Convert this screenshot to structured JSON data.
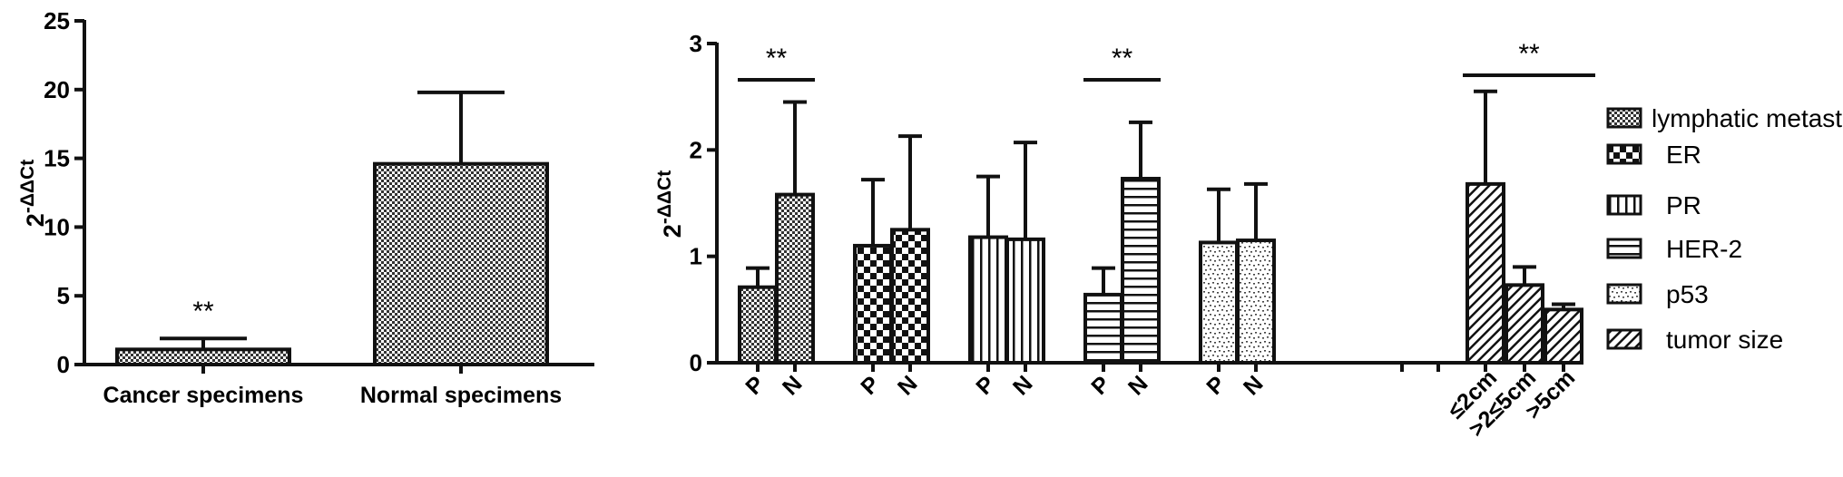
{
  "colors": {
    "ink": "#111111",
    "background": "#ffffff"
  },
  "chart_data": [
    {
      "type": "bar",
      "ylabel": "2-ΔΔCt",
      "ylim": [
        0,
        25
      ],
      "yticks": [
        0,
        5,
        10,
        15,
        20,
        25
      ],
      "categories": [
        "Cancer specimens",
        "Normal specimens"
      ],
      "values": [
        1.1,
        14.6
      ],
      "errors": [
        0.8,
        5.2
      ],
      "patterns": [
        "dots",
        "dots"
      ],
      "annotations": [
        {
          "text": "**",
          "category": "Cancer specimens"
        }
      ]
    },
    {
      "type": "bar",
      "ylabel": "2-ΔΔCt",
      "ylim": [
        0,
        3
      ],
      "yticks": [
        0,
        1,
        2,
        3
      ],
      "legend_position": "right",
      "series": [
        {
          "name": "lymphatic metastasis",
          "pattern": "dots",
          "categories": [
            "P",
            "N"
          ],
          "values": [
            0.71,
            1.58
          ],
          "errors": [
            0.18,
            0.87
          ],
          "significance": "**"
        },
        {
          "name": "ER",
          "pattern": "checker",
          "categories": [
            "P",
            "N"
          ],
          "values": [
            1.1,
            1.25
          ],
          "errors": [
            0.62,
            0.88
          ],
          "significance": ""
        },
        {
          "name": "PR",
          "pattern": "vlines",
          "categories": [
            "P",
            "N"
          ],
          "values": [
            1.18,
            1.16
          ],
          "errors": [
            0.57,
            0.91
          ],
          "significance": ""
        },
        {
          "name": "HER-2",
          "pattern": "hlines",
          "categories": [
            "P",
            "N"
          ],
          "values": [
            0.64,
            1.73
          ],
          "errors": [
            0.25,
            0.53
          ],
          "significance": "**"
        },
        {
          "name": "p53",
          "pattern": "speckle",
          "categories": [
            "P",
            "N"
          ],
          "values": [
            1.13,
            1.15
          ],
          "errors": [
            0.5,
            0.53
          ],
          "significance": ""
        },
        {
          "name": "tumor size",
          "pattern": "diag",
          "categories": [
            "≤2cm",
            ">2≤5cm",
            ">5cm"
          ],
          "values": [
            1.68,
            0.73,
            0.5
          ],
          "errors": [
            0.87,
            0.17,
            0.05
          ],
          "significance": "**"
        }
      ]
    }
  ]
}
